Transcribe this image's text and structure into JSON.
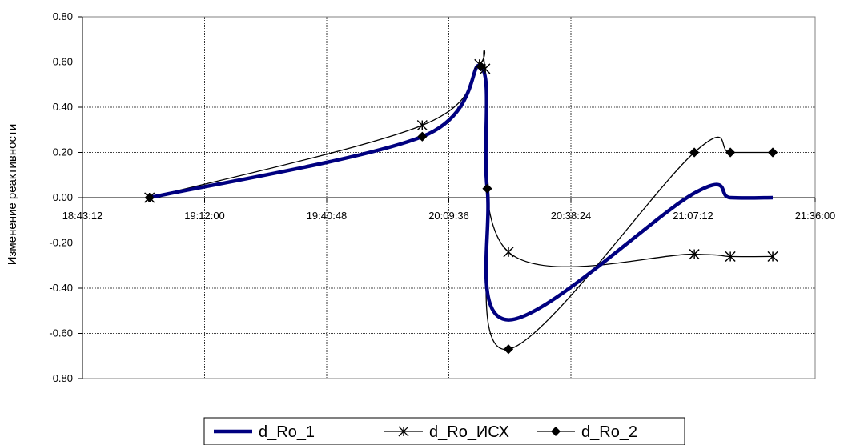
{
  "chart_data": {
    "type": "line",
    "title": "",
    "xlabel": "",
    "ylabel": "Изменение реактивности",
    "x_ticks": [
      "18:43:12",
      "19:12:00",
      "19:40:48",
      "20:09:36",
      "20:38:24",
      "21:07:12",
      "21:36:00"
    ],
    "y_ticks": [
      "0.80",
      "0.60",
      "0.40",
      "0.20",
      "0.00",
      "-0.20",
      "-0.40",
      "-0.60",
      "-0.80"
    ],
    "xlim": [
      "18:43:12",
      "21:36:00"
    ],
    "ylim": [
      -0.8,
      0.8
    ],
    "grid": true,
    "legend_position": "bottom",
    "series": [
      {
        "name": "d_Ro_1",
        "color": "#000080",
        "marker": "none",
        "x": [
          "18:59:00",
          "20:03:20",
          "20:17:10",
          "20:18:40",
          "20:23:40",
          "21:07:30",
          "21:16:00",
          "21:26:00"
        ],
        "values": [
          0.0,
          0.27,
          0.58,
          0.04,
          -0.54,
          0.02,
          0.0,
          0.0
        ]
      },
      {
        "name": "d_Ro_ИСХ",
        "color": "#000000",
        "marker": "asterisk",
        "x": [
          "18:59:00",
          "20:03:20",
          "20:16:50",
          "20:18:10",
          "20:23:40",
          "21:07:30",
          "21:16:00",
          "21:26:00"
        ],
        "values": [
          0.0,
          0.32,
          0.59,
          0.57,
          -0.24,
          -0.25,
          -0.26,
          -0.26
        ]
      },
      {
        "name": "d_Ro_2",
        "color": "#000000",
        "marker": "diamond",
        "x": [
          "18:59:00",
          "20:03:20",
          "20:17:10",
          "20:18:40",
          "20:23:40",
          "21:07:30",
          "21:16:00",
          "21:26:00"
        ],
        "values": [
          0.0,
          0.27,
          0.58,
          0.04,
          -0.67,
          0.2,
          0.2,
          0.2
        ]
      }
    ]
  }
}
